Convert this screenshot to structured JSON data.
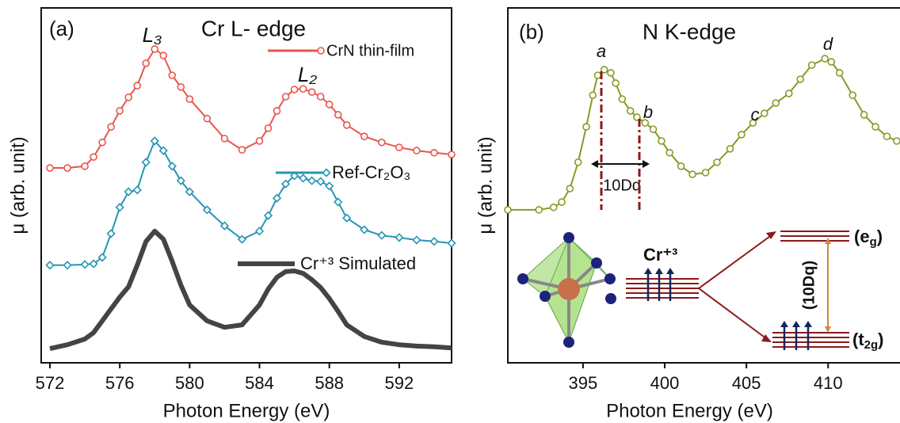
{
  "chart_data": [
    {
      "type": "line",
      "panel_label": "(a)",
      "title": "Cr L- edge",
      "xlabel": "Photon Energy (eV)",
      "ylabel": "μ (arb. unit)",
      "xlim": [
        571.5,
        595
      ],
      "xticks": [
        572,
        576,
        580,
        584,
        588,
        592
      ],
      "ylim": [
        0,
        100
      ],
      "x": [
        572,
        573,
        574,
        574.5,
        575,
        575.5,
        576,
        576.5,
        577,
        577.5,
        578,
        578.5,
        579,
        579.5,
        580,
        581,
        582,
        583,
        584,
        584.5,
        585,
        585.5,
        586,
        586.5,
        587,
        587.5,
        588,
        588.5,
        589,
        590,
        591,
        592,
        593,
        594,
        595
      ],
      "series": [
        {
          "name": "CrN thin-film",
          "color": "#e8564a",
          "marker": "circle",
          "values": [
            54.9,
            54.9,
            55.4,
            58.0,
            62.1,
            66.5,
            71.0,
            74.8,
            78.1,
            84.4,
            88.4,
            86.6,
            81.0,
            77.7,
            74.3,
            68.8,
            63.2,
            60.0,
            62.5,
            66.1,
            71.0,
            75.0,
            77.0,
            77.2,
            76.3,
            75.0,
            72.8,
            69.9,
            67.0,
            63.8,
            62.1,
            60.7,
            59.8,
            59.2,
            58.7
          ]
        },
        {
          "name": "Ref-Cr₂O₃",
          "color": "#2596b4",
          "marker": "diamond",
          "values": [
            27.5,
            27.5,
            27.7,
            27.9,
            29.7,
            36.4,
            43.8,
            48.2,
            48.7,
            56.5,
            62.5,
            59.8,
            55.4,
            51.3,
            48.2,
            43.1,
            38.6,
            34.8,
            37.1,
            41.5,
            46.4,
            50.4,
            52.7,
            52.0,
            51.3,
            51.1,
            49.8,
            45.3,
            40.8,
            37.5,
            35.9,
            35.3,
            34.6,
            34.2,
            33.7
          ]
        },
        {
          "name": "Cr⁺³ Simulated",
          "color": "#444444",
          "marker": null,
          "values": [
            4.0,
            5.1,
            6.7,
            8.5,
            11.8,
            15.2,
            18.5,
            21.4,
            27.5,
            34.2,
            37.1,
            34.8,
            28.6,
            21.9,
            16.3,
            11.8,
            10.0,
            10.7,
            16.3,
            20.8,
            24.1,
            25.7,
            25.9,
            25.2,
            23.4,
            21.2,
            18.1,
            14.5,
            10.7,
            7.4,
            5.8,
            5.1,
            4.7,
            4.5,
            4.2
          ]
        }
      ],
      "annotations": [
        "L₃",
        "L₂"
      ]
    },
    {
      "type": "line",
      "panel_label": "(b)",
      "title": "N K-edge",
      "xlabel": "Photon Energy (eV)",
      "ylabel": "μ (arb. unit)",
      "xlim": [
        390.4,
        414.4
      ],
      "xticks": [
        395,
        400,
        405,
        410
      ],
      "ylim": [
        0,
        100
      ],
      "x": [
        390.4,
        392.3,
        393.2,
        393.7,
        394.2,
        394.7,
        395.2,
        395.6,
        395.9,
        396.3,
        396.7,
        397.0,
        397.4,
        397.9,
        398.3,
        398.8,
        399.3,
        399.8,
        400.3,
        401.0,
        401.7,
        402.5,
        403.2,
        404.0,
        404.7,
        405.4,
        406.1,
        406.8,
        407.6,
        408.3,
        409.0,
        409.8,
        410.2,
        410.7,
        411.5,
        412.2,
        412.9,
        413.6,
        414.2
      ],
      "series": [
        {
          "color": "#8a9a24",
          "marker": "circle",
          "values": [
            43.1,
            43.1,
            43.8,
            45.3,
            49.1,
            56.5,
            66.5,
            75.4,
            81.0,
            82.6,
            81.7,
            78.8,
            74.3,
            71.0,
            69.2,
            67.6,
            65.8,
            62.5,
            59.2,
            55.4,
            53.1,
            53.6,
            56.5,
            60.3,
            64.3,
            67.6,
            70.3,
            73.2,
            75.9,
            79.9,
            83.9,
            85.7,
            84.8,
            81.7,
            75.4,
            69.9,
            66.5,
            63.8,
            62.5
          ]
        }
      ],
      "annotations": [
        "a",
        "b",
        "c",
        "d",
        "10Dq"
      ],
      "inset": {
        "ion": "Cr⁺³",
        "upper": [
          "(e",
          "g",
          ")"
        ],
        "gap": "(10Dq)",
        "lower": [
          "(t",
          "2g",
          ")"
        ]
      }
    }
  ]
}
